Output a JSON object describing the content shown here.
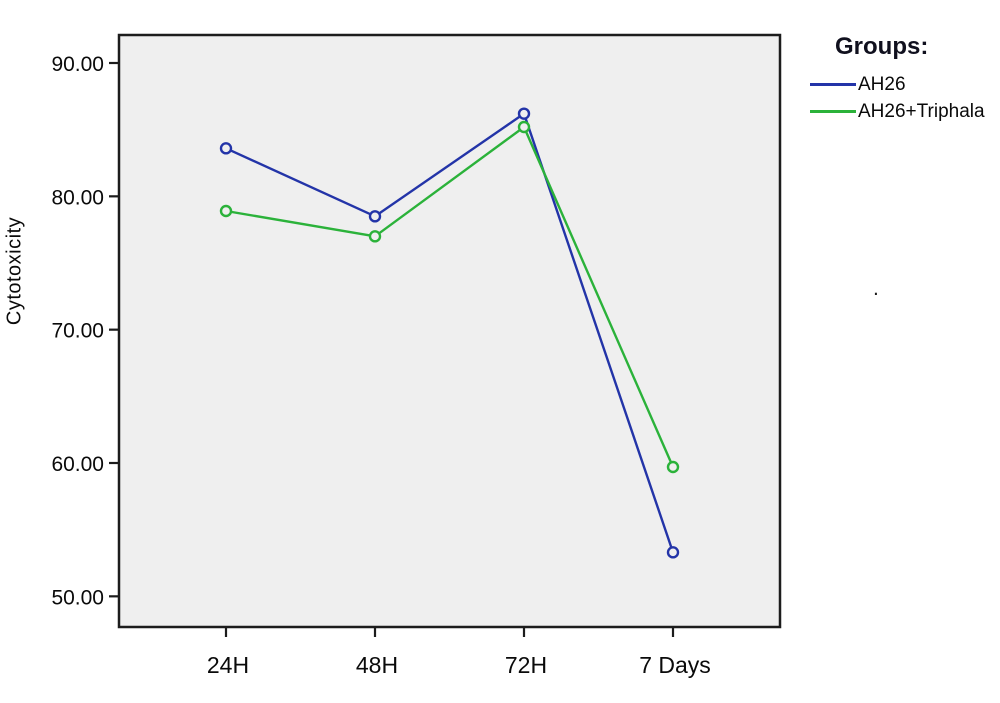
{
  "chart_data": {
    "type": "line",
    "title": "",
    "xlabel": "",
    "ylabel": "Cytotoxicity",
    "categories": [
      "24H",
      "48H",
      "72H",
      "7 Days"
    ],
    "series": [
      {
        "name": "AH26",
        "color": "#2334a8",
        "values": [
          83.6,
          78.5,
          86.2,
          53.3
        ]
      },
      {
        "name": "AH26+Triphala",
        "color": "#2bb23a",
        "values": [
          78.9,
          77.0,
          85.2,
          59.7
        ]
      }
    ],
    "ylim": [
      47.7,
      92.1
    ],
    "yticks": [
      90,
      80,
      70,
      60,
      50
    ],
    "ytick_labels": [
      "90.00",
      "80.00",
      "70.00",
      "60.00",
      "50.00"
    ],
    "grid": false,
    "legend": {
      "title": "Groups:",
      "position": "top-right"
    },
    "plot_background": "#efefef",
    "axis_color": "#1c1c1c",
    "marker": "open-circle"
  },
  "stray_annotation": "."
}
